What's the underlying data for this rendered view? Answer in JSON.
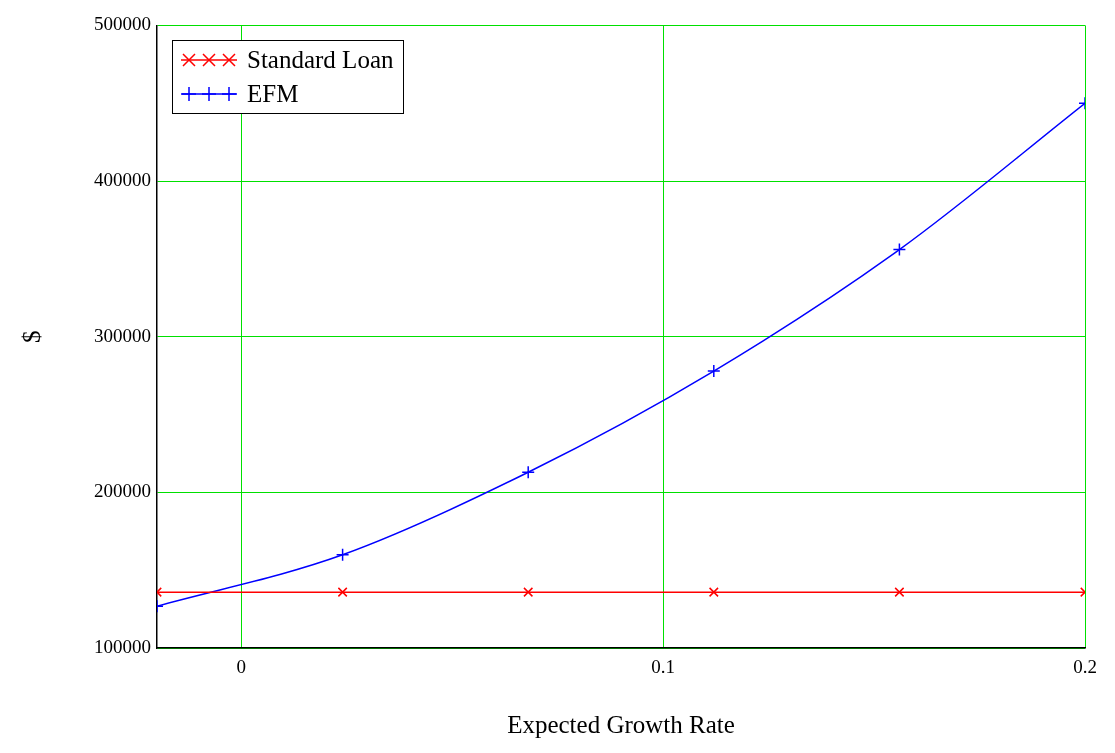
{
  "chart_data": {
    "type": "line",
    "xlabel": "Expected Growth Rate",
    "ylabel": "$",
    "x": [
      -0.02,
      0.024,
      0.068,
      0.112,
      0.156,
      0.2
    ],
    "series": [
      {
        "name": "Standard Loan",
        "color": "#ff0000",
        "values": [
          136000,
          136000,
          136000,
          136000,
          136000,
          136000
        ],
        "marker": "cross"
      },
      {
        "name": "EFM",
        "color": "#0000ff",
        "values": [
          127000,
          160000,
          213000,
          278000,
          356000,
          450000
        ],
        "marker": "cross"
      }
    ],
    "xlim": [
      -0.02,
      0.2
    ],
    "xticks": [
      0,
      0.1,
      0.2
    ],
    "ylim": [
      100000,
      500000
    ],
    "yticks": [
      100000,
      200000,
      300000,
      400000,
      500000
    ],
    "grid": true,
    "legend": "top left",
    "line_style": "solid"
  }
}
